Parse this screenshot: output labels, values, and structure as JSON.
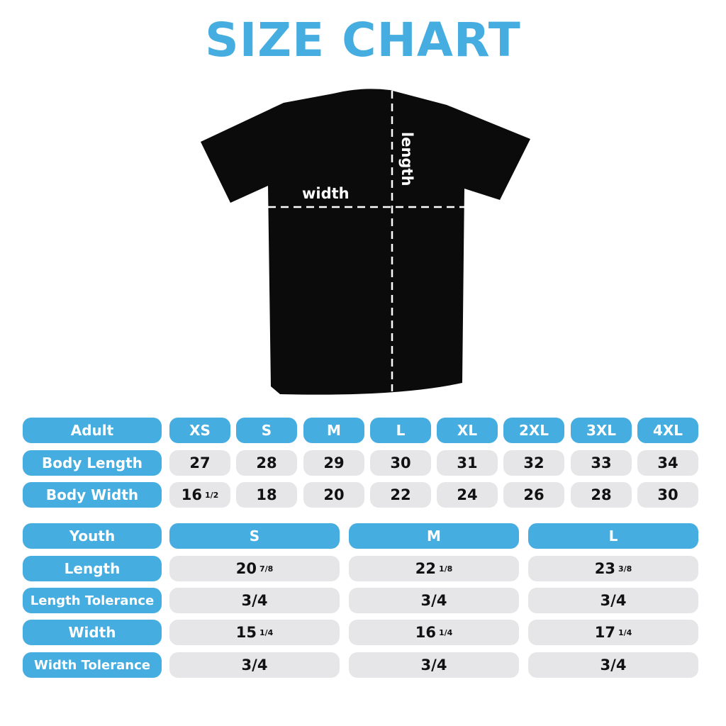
{
  "title": "SIZE CHART",
  "diagram": {
    "width_label": "width",
    "length_label": "length"
  },
  "adult": {
    "header_label": "Adult",
    "sizes": [
      "XS",
      "S",
      "M",
      "L",
      "XL",
      "2XL",
      "3XL",
      "4XL"
    ],
    "rows": [
      {
        "label": "Body Length",
        "values": [
          {
            "whole": "27"
          },
          {
            "whole": "28"
          },
          {
            "whole": "29"
          },
          {
            "whole": "30"
          },
          {
            "whole": "31"
          },
          {
            "whole": "32"
          },
          {
            "whole": "33"
          },
          {
            "whole": "34"
          }
        ]
      },
      {
        "label": "Body Width",
        "values": [
          {
            "whole": "16",
            "frac": "1/2"
          },
          {
            "whole": "18"
          },
          {
            "whole": "20"
          },
          {
            "whole": "22"
          },
          {
            "whole": "24"
          },
          {
            "whole": "26"
          },
          {
            "whole": "28"
          },
          {
            "whole": "30"
          }
        ]
      }
    ]
  },
  "youth": {
    "header_label": "Youth",
    "sizes": [
      "S",
      "M",
      "L"
    ],
    "rows": [
      {
        "label": "Length",
        "values": [
          {
            "whole": "20",
            "frac": "7/8"
          },
          {
            "whole": "22",
            "frac": "1/8"
          },
          {
            "whole": "23",
            "frac": "3/8"
          }
        ]
      },
      {
        "label": "Length Tolerance",
        "values": [
          {
            "whole": "3/4"
          },
          {
            "whole": "3/4"
          },
          {
            "whole": "3/4"
          }
        ]
      },
      {
        "label": "Width",
        "values": [
          {
            "whole": "15",
            "frac": "1/4"
          },
          {
            "whole": "16",
            "frac": "1/4"
          },
          {
            "whole": "17",
            "frac": "1/4"
          }
        ]
      },
      {
        "label": "Width Tolerance",
        "values": [
          {
            "whole": "3/4"
          },
          {
            "whole": "3/4"
          },
          {
            "whole": "3/4"
          }
        ]
      }
    ]
  },
  "colors": {
    "accent": "#45ade0",
    "cell": "#e6e6e8",
    "shirt": "#0a0a0a"
  }
}
